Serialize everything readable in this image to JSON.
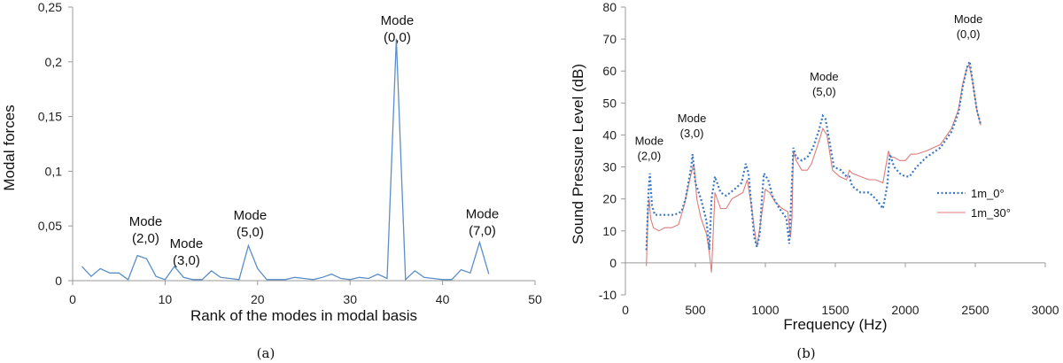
{
  "chart_data": [
    {
      "type": "line",
      "panel": "(a)",
      "xlabel": "Rank of the modes in modal basis",
      "ylabel": "Modal forces",
      "xlim": [
        0,
        50
      ],
      "ylim": [
        0,
        0.25
      ],
      "xticks": [
        0,
        10,
        20,
        30,
        40,
        50
      ],
      "xtick_labels": [
        "0",
        "10",
        "20",
        "30",
        "40",
        "50"
      ],
      "yticks": [
        0,
        0.05,
        0.1,
        0.15,
        0.2,
        0.25
      ],
      "ytick_labels": [
        "0",
        "0,05",
        "0,1",
        "0,15",
        "0,2",
        "0,25"
      ],
      "grid": false,
      "color": "#5b8fc7",
      "series": [
        {
          "x": [
            1,
            2,
            3,
            4,
            5,
            6,
            7,
            8,
            9,
            10,
            11,
            12,
            13,
            14,
            15,
            16,
            17,
            18,
            19,
            20,
            21,
            22,
            23,
            24,
            25,
            26,
            27,
            28,
            29,
            30,
            31,
            32,
            33,
            34,
            35,
            36,
            37,
            38,
            39,
            40,
            41,
            42,
            43,
            44,
            45
          ],
          "values": [
            0.013,
            0.004,
            0.011,
            0.007,
            0.007,
            0.001,
            0.023,
            0.02,
            0.004,
            0.001,
            0.013,
            0.003,
            0.001,
            0.001,
            0.009,
            0.003,
            0.002,
            0.001,
            0.032,
            0.011,
            0.001,
            0.001,
            0.001,
            0.003,
            0.002,
            0.001,
            0.003,
            0.006,
            0.002,
            0.001,
            0.003,
            0.002,
            0.006,
            0.002,
            0.221,
            0.001,
            0.009,
            0.003,
            0.002,
            0.001,
            0.001,
            0.01,
            0.007,
            0.035,
            0.006
          ]
        }
      ],
      "annotations": [
        {
          "line1": "Mode",
          "line2": "(2,0)",
          "x": 7.9,
          "y": 0.05
        },
        {
          "line1": "Mode",
          "line2": "(3,0)",
          "x": 12.3,
          "y": 0.03
        },
        {
          "line1": "Mode",
          "line2": "(5,0)",
          "x": 19.2,
          "y": 0.056
        },
        {
          "line1": "Mode",
          "line2": "(0,0)",
          "x": 35.1,
          "y": 0.234
        },
        {
          "line1": "Mode",
          "line2": "(7,0)",
          "x": 44.3,
          "y": 0.057
        }
      ]
    },
    {
      "type": "line",
      "panel": "(b)",
      "xlabel": "Frequency (Hz)",
      "ylabel": "Sound Pressure Level (dB)",
      "xlim": [
        0,
        3000
      ],
      "ylim": [
        -10,
        80
      ],
      "xticks": [
        0,
        500,
        1000,
        1500,
        2000,
        2500,
        3000
      ],
      "xtick_labels": [
        "0",
        "500",
        "1000",
        "1500",
        "2000",
        "2500",
        "3000"
      ],
      "yticks": [
        -10,
        0,
        10,
        20,
        30,
        40,
        50,
        60,
        70,
        80
      ],
      "ytick_labels": [
        "-10",
        "0",
        "10",
        "20",
        "30",
        "40",
        "50",
        "60",
        "70",
        "80"
      ],
      "grid": false,
      "legend_position": "right",
      "series": [
        {
          "name": "1m_0°",
          "color": "#3a78c2",
          "style": "dotted",
          "x": [
            150,
            165,
            175,
            190,
            210,
            250,
            300,
            350,
            400,
            430,
            450,
            470,
            480,
            500,
            540,
            580,
            600,
            615,
            640,
            680,
            720,
            780,
            830,
            860,
            880,
            900,
            920,
            940,
            960,
            975,
            990,
            1020,
            1050,
            1100,
            1150,
            1170,
            1185,
            1200,
            1220,
            1260,
            1300,
            1340,
            1380,
            1410,
            1430,
            1450,
            1490,
            1540,
            1580,
            1600,
            1620,
            1680,
            1740,
            1790,
            1840,
            1870,
            1890,
            1920,
            1960,
            2000,
            2030,
            2080,
            2150,
            2250,
            2330,
            2380,
            2410,
            2440,
            2460,
            2480,
            2510,
            2540
          ],
          "values": [
            4,
            22,
            28,
            18,
            15,
            15,
            15,
            15,
            16,
            20,
            25,
            30,
            34,
            25,
            20,
            13,
            4,
            20,
            27,
            22,
            21,
            23,
            25,
            31,
            28,
            18,
            8,
            5,
            9,
            20,
            28,
            26,
            21,
            17,
            14,
            6,
            20,
            36,
            33,
            32,
            33,
            36,
            41,
            46,
            45,
            40,
            30,
            29,
            27,
            27,
            24,
            22,
            22,
            20,
            17,
            24,
            34,
            30,
            28,
            27,
            27,
            30,
            33,
            36,
            41,
            47,
            55,
            61,
            63,
            57,
            48,
            43
          ]
        },
        {
          "name": "1m_30°",
          "color": "#e07b7b",
          "style": "solid",
          "x": [
            150,
            160,
            170,
            180,
            200,
            240,
            280,
            330,
            380,
            420,
            450,
            470,
            490,
            510,
            540,
            580,
            600,
            615,
            640,
            680,
            720,
            760,
            800,
            840,
            870,
            900,
            920,
            940,
            960,
            980,
            1000,
            1030,
            1070,
            1120,
            1160,
            1180,
            1190,
            1200,
            1220,
            1260,
            1300,
            1330,
            1360,
            1390,
            1410,
            1440,
            1480,
            1530,
            1580,
            1600,
            1620,
            1680,
            1740,
            1790,
            1840,
            1880,
            1895,
            1920,
            1960,
            2000,
            2040,
            2080,
            2150,
            2250,
            2330,
            2380,
            2410,
            2440,
            2455,
            2480,
            2510,
            2540
          ],
          "values": [
            -1,
            15,
            20,
            14,
            11,
            10,
            11,
            11,
            12,
            18,
            24,
            28,
            31,
            20,
            14,
            9,
            3,
            -3,
            22,
            17,
            17,
            20,
            21,
            22,
            26,
            18,
            11,
            5,
            11,
            17,
            23,
            22,
            19,
            17,
            16,
            8,
            14,
            35,
            32,
            29,
            29,
            31,
            35,
            39,
            42,
            40,
            29,
            27,
            26,
            29,
            28,
            27,
            26,
            26,
            25,
            35,
            33,
            33,
            32,
            32,
            34,
            34,
            35,
            37,
            42,
            48,
            56,
            61,
            62,
            57,
            48,
            43
          ]
        }
      ],
      "annotations": [
        {
          "line1": "Mode",
          "line2": "(2,0)",
          "x": 170,
          "y": 37
        },
        {
          "line1": "Mode",
          "line2": "(3,0)",
          "x": 475,
          "y": 44
        },
        {
          "line1": "Mode",
          "line2": "(5,0)",
          "x": 1420,
          "y": 57
        },
        {
          "line1": "Mode",
          "line2": "(0,0)",
          "x": 2450,
          "y": 75
        }
      ]
    }
  ]
}
